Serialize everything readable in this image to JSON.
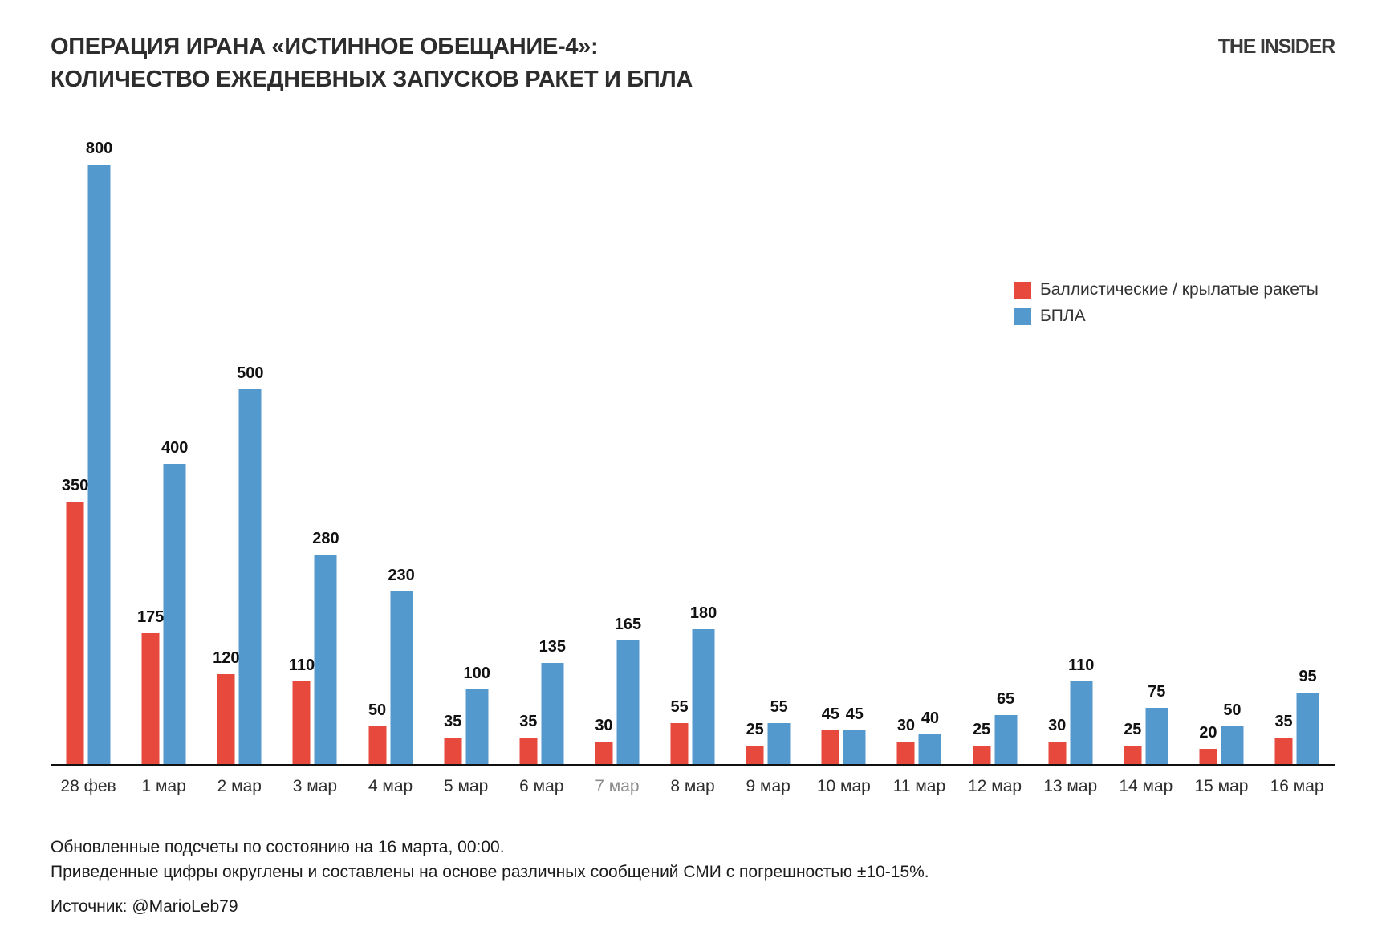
{
  "header": {
    "title_line1": "ОПЕРАЦИЯ ИРАНА «ИСТИННОЕ ОБЕЩАНИЕ-4»:",
    "title_line2": "КОЛИЧЕСТВО ЕЖЕДНЕВНЫХ ЗАПУСКОВ РАКЕТ И БПЛА",
    "logo": "THE INSIDER"
  },
  "legend": {
    "missiles_label": "Баллистические / крылатые ракеты",
    "uav_label": "БПЛА"
  },
  "colors": {
    "missiles": "#e74a3c",
    "uav": "#5499ce",
    "axis": "#111111",
    "muted_tick": "#8c8c8c"
  },
  "chart_data": {
    "type": "bar",
    "title": "ОПЕРАЦИЯ ИРАНА «ИСТИННОЕ ОБЕЩАНИЕ-4»: КОЛИЧЕСТВО ЕЖЕДНЕВНЫХ ЗАПУСКОВ РАКЕТ И БПЛА",
    "categories": [
      "28 фев",
      "1 мар",
      "2 мар",
      "3 мар",
      "4 мар",
      "5 мар",
      "6 мар",
      "7 мар",
      "8 мар",
      "9 мар",
      "10 мар",
      "11 мар",
      "12 мар",
      "13 мар",
      "14 мар",
      "15 мар",
      "16 мар"
    ],
    "muted_categories": [
      "7 мар"
    ],
    "series": [
      {
        "name": "Баллистические / крылатые ракеты",
        "color": "#e74a3c",
        "values": [
          350,
          175,
          120,
          110,
          50,
          35,
          35,
          30,
          55,
          25,
          45,
          30,
          25,
          30,
          25,
          20,
          35
        ]
      },
      {
        "name": "БПЛА",
        "color": "#5499ce",
        "values": [
          800,
          400,
          500,
          280,
          230,
          100,
          135,
          165,
          180,
          55,
          45,
          40,
          65,
          110,
          75,
          50,
          95
        ]
      }
    ],
    "xlabel": "",
    "ylabel": "",
    "ylim": [
      0,
      800
    ],
    "grid": false,
    "value_labels": true,
    "legend_position": "right"
  },
  "footer": {
    "note1": "Обновленные подсчеты по состоянию на 16 марта, 00:00.",
    "note2": "Приведенные цифры округлены и составлены на основе различных сообщений СМИ с погрешностью ±10-15%.",
    "source": "Источник: @MarioLeb79"
  }
}
